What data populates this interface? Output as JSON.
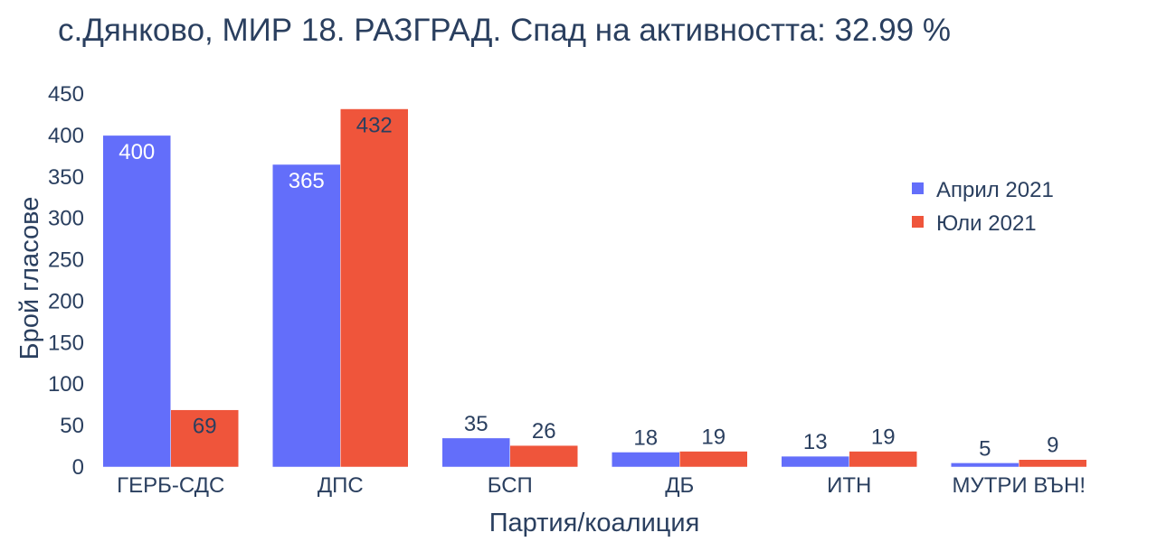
{
  "chart_data": {
    "type": "bar",
    "title": "с.Дянково, МИР 18. РАЗГРАД. Спад на активността: 32.99 %",
    "xlabel": "Партия/коалиция",
    "ylabel": "Брой гласове",
    "categories": [
      "ГЕРБ-СДС",
      "ДПС",
      "БСП",
      "ДБ",
      "ИТН",
      "МУТРИ ВЪН!"
    ],
    "series": [
      {
        "name": "Април 2021",
        "color": "#636efa",
        "values": [
          400,
          365,
          35,
          18,
          13,
          5
        ]
      },
      {
        "name": "Юли 2021",
        "color": "#ef553b",
        "values": [
          69,
          432,
          26,
          19,
          19,
          9
        ]
      }
    ],
    "ylim": [
      0,
      450
    ],
    "yticks": [
      0,
      50,
      100,
      150,
      200,
      250,
      300,
      350,
      400,
      450
    ],
    "grid": false,
    "legend_position": "top-right",
    "data_labels": true
  }
}
